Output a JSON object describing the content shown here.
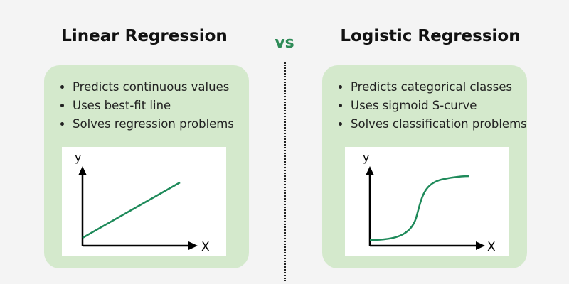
{
  "vs_label": "vs",
  "left": {
    "title": "Linear Regression",
    "bullets": [
      "Predicts continuous values",
      "Uses best-fit line",
      "Solves regression problems"
    ],
    "plot": {
      "y_label": "y",
      "x_label": "X"
    }
  },
  "right": {
    "title": "Logistic Regression",
    "bullets": [
      "Predicts categorical classes",
      "Uses sigmoid S-curve",
      "Solves classification problems"
    ],
    "plot": {
      "y_label": "y",
      "x_label": "X"
    }
  },
  "colors": {
    "card": "#d4e9cc",
    "curve": "#1e8a5a",
    "vs": "#2e8b57",
    "background": "#f4f4f4"
  }
}
